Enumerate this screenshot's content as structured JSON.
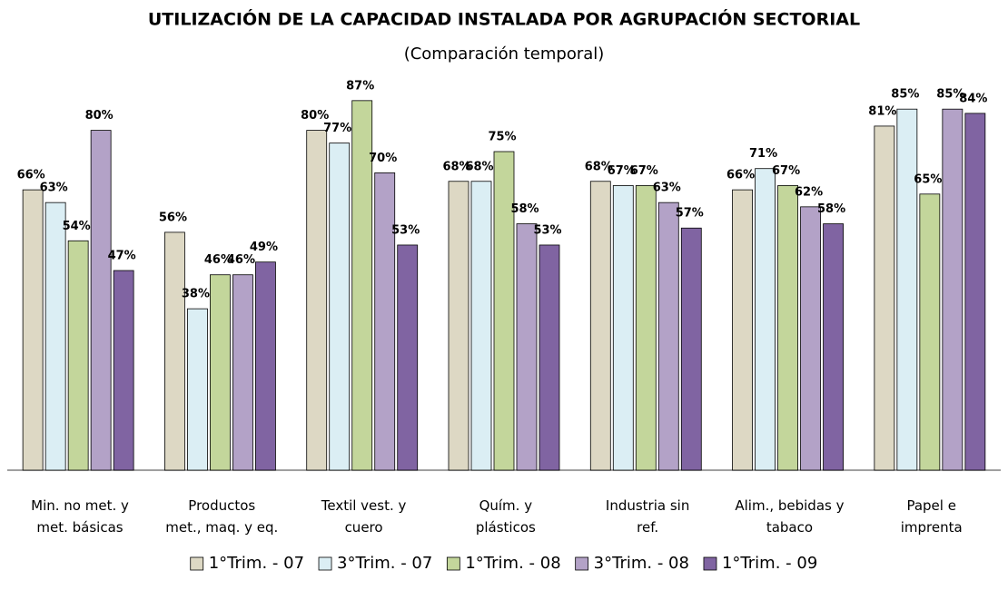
{
  "chart_data": {
    "type": "bar",
    "title": "UTILIZACIÓN DE LA CAPACIDAD INSTALADA POR AGRUPACIÓN SECTORIAL",
    "subtitle": "(Comparación temporal)",
    "categories": [
      "Min. no met. y\nmet. básicas",
      "Productos\nmet., maq. y eq.",
      "Textil vest. y\ncuero",
      "Quím. y\nplásticos",
      "Industria sin\nref.",
      "Alim., bebidas y\ntabaco",
      "Papel e\nimprenta"
    ],
    "ylim": [
      0,
      100
    ],
    "series": [
      {
        "name": "1°Trim. - 07",
        "color": "#ddd8c4",
        "values": [
          66,
          56,
          80,
          68,
          68,
          66,
          81
        ],
        "value_labels": [
          "66%",
          "56%",
          "80%",
          "68%",
          "68%",
          "66%",
          "81%"
        ]
      },
      {
        "name": "3°Trim. - 07",
        "color": "#dbeef4",
        "values": [
          63,
          38,
          77,
          68,
          67,
          71,
          85
        ],
        "value_labels": [
          "63%",
          "38%",
          "77%",
          "68%",
          "67%",
          "71%",
          "85%"
        ]
      },
      {
        "name": "1°Trim. - 08",
        "color": "#c3d69b",
        "values": [
          54,
          46,
          87,
          75,
          67,
          67,
          65
        ],
        "value_labels": [
          "54%",
          "46%",
          "87%",
          "75%",
          "67%",
          "67%",
          "65%"
        ]
      },
      {
        "name": "3°Trim. - 08",
        "color": "#b3a2c7",
        "values": [
          80,
          46,
          70,
          58,
          63,
          62,
          85
        ],
        "value_labels": [
          "80%",
          "46%",
          "70%",
          "58%",
          "63%",
          "62%",
          "85%"
        ]
      },
      {
        "name": "1°Trim. - 09",
        "color": "#8064a2",
        "values": [
          47,
          49,
          53,
          53,
          57,
          58,
          84
        ],
        "value_labels": [
          "47%",
          "49%",
          "53%",
          "53%",
          "57%",
          "58%",
          "84%"
        ]
      }
    ],
    "legend": "bottom"
  }
}
